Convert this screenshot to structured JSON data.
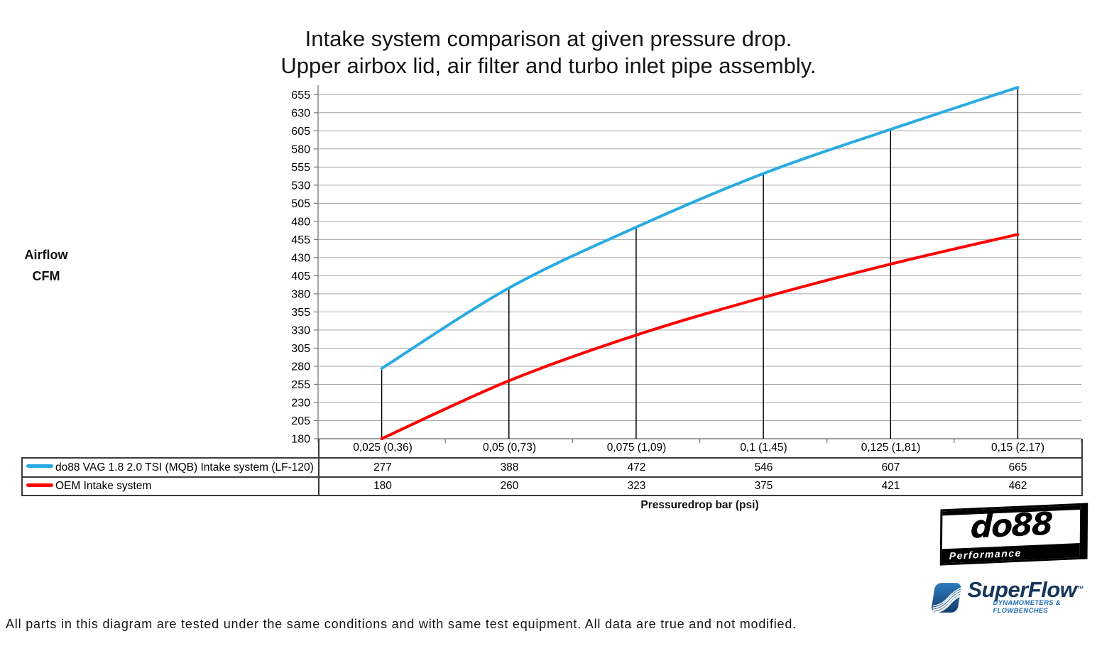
{
  "title": {
    "line1": "Intake system comparison at given pressure drop.",
    "line2": "Upper airbox lid, air filter and turbo inlet pipe assembly."
  },
  "y_axis": {
    "label_line1": "Airflow",
    "label_line2": "CFM"
  },
  "x_axis": {
    "label": "Pressuredrop bar (psi)"
  },
  "chart_data": {
    "type": "line",
    "title": "Intake system comparison at given pressure drop. Upper airbox lid, air filter and turbo inlet pipe assembly.",
    "xlabel": "Pressuredrop bar (psi)",
    "ylabel": "Airflow CFM",
    "categories": [
      "0,025 (0,36)",
      "0,05 (0,73)",
      "0,075 (1,09)",
      "0,1 (1,45)",
      "0,125 (1,81)",
      "0,15 (2,17)"
    ],
    "series": [
      {
        "name": "do88 VAG 1.8 2.0 TSI (MQB) Intake system (LF-120)",
        "color": "#29ABE2",
        "values": [
          277,
          388,
          472,
          546,
          607,
          665
        ]
      },
      {
        "name": "OEM Intake system",
        "color": "#FF0000",
        "values": [
          180,
          260,
          323,
          375,
          421,
          462
        ]
      }
    ],
    "y_ticks": [
      180,
      205,
      230,
      255,
      280,
      305,
      330,
      355,
      380,
      405,
      430,
      455,
      480,
      505,
      530,
      555,
      580,
      605,
      630,
      655
    ],
    "ylim": [
      180,
      668
    ],
    "grid": "horizontal",
    "droplines": true,
    "smooth": true,
    "legend_position": "table-left"
  },
  "footer": {
    "disclaimer": "All parts in this diagram are tested under the same conditions and with same test equipment. All data are true and not modified."
  },
  "logos": {
    "do88": {
      "name": "do88",
      "tagline": "Performance"
    },
    "superflow": {
      "name": "SuperFlow",
      "mark": "™",
      "tagline": "DYNAMOMETERS & FLOWBENCHES"
    }
  },
  "colors": {
    "series_blue": "#29ABE2",
    "series_red": "#FF0000",
    "gridline": "#A6A6A6",
    "axis": "#7F7F7F",
    "dropline": "#000000",
    "table_border": "#3C3C3C"
  }
}
